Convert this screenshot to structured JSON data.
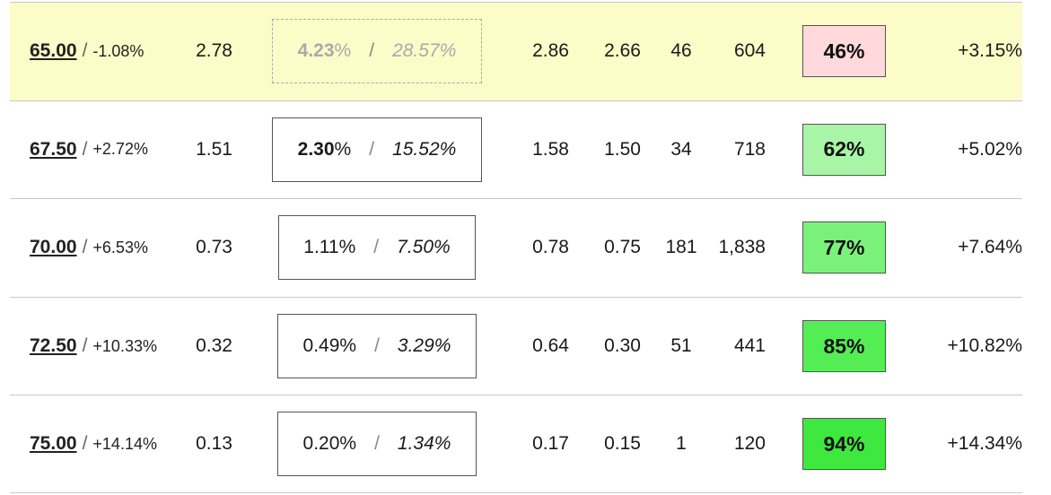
{
  "rows": [
    {
      "strike": "65.00",
      "strike_pct": "-1.08%",
      "price": "2.78",
      "range_pct": "4.23",
      "range_pct_unit": "%",
      "range_ann": "28.57%",
      "bid": "2.86",
      "ask": "2.66",
      "volume": "46",
      "open_interest": "604",
      "probability": "46%",
      "prob_color": "#ffd9dc",
      "return": "+3.15%",
      "highlight": true,
      "dim": true
    },
    {
      "strike": "67.50",
      "strike_pct": "+2.72%",
      "price": "1.51",
      "range_pct": "2.30",
      "range_pct_unit": "%",
      "range_ann": "15.52%",
      "bid": "1.58",
      "ask": "1.50",
      "volume": "34",
      "open_interest": "718",
      "probability": "62%",
      "prob_color": "#a8f5a8",
      "return": "+5.02%",
      "highlight": false,
      "dim": false
    },
    {
      "strike": "70.00",
      "strike_pct": "+6.53%",
      "price": "0.73",
      "range_pct": "1.11%",
      "range_pct_unit": "",
      "range_ann": "7.50%",
      "bid": "0.78",
      "ask": "0.75",
      "volume": "181",
      "open_interest": "1,838",
      "probability": "77%",
      "prob_color": "#7af27a",
      "return": "+7.64%",
      "highlight": false,
      "dim": false
    },
    {
      "strike": "72.50",
      "strike_pct": "+10.33%",
      "price": "0.32",
      "range_pct": "0.49%",
      "range_pct_unit": "",
      "range_ann": "3.29%",
      "bid": "0.64",
      "ask": "0.30",
      "volume": "51",
      "open_interest": "441",
      "probability": "85%",
      "prob_color": "#54ee54",
      "return": "+10.82%",
      "highlight": false,
      "dim": false
    },
    {
      "strike": "75.00",
      "strike_pct": "+14.14%",
      "price": "0.13",
      "range_pct": "0.20%",
      "range_pct_unit": "",
      "range_ann": "1.34%",
      "bid": "0.17",
      "ask": "0.15",
      "volume": "1",
      "open_interest": "120",
      "probability": "94%",
      "prob_color": "#3ee83e",
      "return": "+14.34%",
      "highlight": false,
      "dim": false
    }
  ],
  "separator": "/"
}
